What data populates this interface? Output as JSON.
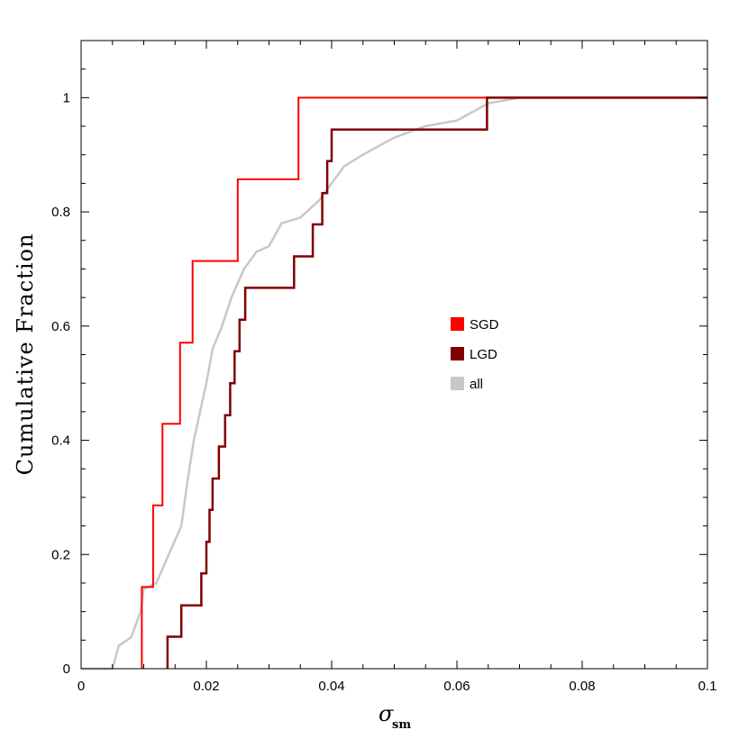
{
  "chart_data": {
    "type": "line",
    "title": "",
    "xlabel": "σ",
    "xlabel_sub": "sm",
    "ylabel": "Cumulative Fraction",
    "xlim": [
      0,
      0.1
    ],
    "ylim": [
      0,
      1.1
    ],
    "x_ticks": [
      {
        "value": 0,
        "label": "0"
      },
      {
        "value": 0.02,
        "label": "0.02"
      },
      {
        "value": 0.04,
        "label": "0.04"
      },
      {
        "value": 0.06,
        "label": "0.06"
      },
      {
        "value": 0.08,
        "label": "0.08"
      },
      {
        "value": 0.1,
        "label": "0.1"
      }
    ],
    "y_ticks": [
      {
        "value": 0,
        "label": "0"
      },
      {
        "value": 0.2,
        "label": "0.2"
      },
      {
        "value": 0.4,
        "label": "0.4"
      },
      {
        "value": 0.6,
        "label": "0.6"
      },
      {
        "value": 0.8,
        "label": "0.8"
      },
      {
        "value": 1,
        "label": "1"
      }
    ],
    "legend_position": "center-right",
    "series": [
      {
        "name": "SGD",
        "color": "#ff0000",
        "step": true,
        "points": [
          [
            0.0097,
            0
          ],
          [
            0.0097,
            0.143
          ],
          [
            0.0115,
            0.143
          ],
          [
            0.0115,
            0.286
          ],
          [
            0.013,
            0.286
          ],
          [
            0.013,
            0.429
          ],
          [
            0.0158,
            0.429
          ],
          [
            0.0158,
            0.571
          ],
          [
            0.0178,
            0.571
          ],
          [
            0.0178,
            0.714
          ],
          [
            0.025,
            0.714
          ],
          [
            0.025,
            0.857
          ],
          [
            0.0347,
            0.857
          ],
          [
            0.0347,
            1.0
          ],
          [
            0.1,
            1.0
          ]
        ]
      },
      {
        "name": "LGD",
        "color": "#800000",
        "step": true,
        "points": [
          [
            0.0138,
            0
          ],
          [
            0.0138,
            0.056
          ],
          [
            0.016,
            0.056
          ],
          [
            0.016,
            0.111
          ],
          [
            0.0192,
            0.111
          ],
          [
            0.0192,
            0.167
          ],
          [
            0.02,
            0.167
          ],
          [
            0.02,
            0.222
          ],
          [
            0.0205,
            0.222
          ],
          [
            0.0205,
            0.278
          ],
          [
            0.021,
            0.278
          ],
          [
            0.021,
            0.333
          ],
          [
            0.022,
            0.333
          ],
          [
            0.022,
            0.389
          ],
          [
            0.023,
            0.389
          ],
          [
            0.023,
            0.444
          ],
          [
            0.0238,
            0.444
          ],
          [
            0.0238,
            0.5
          ],
          [
            0.0245,
            0.5
          ],
          [
            0.0245,
            0.556
          ],
          [
            0.0253,
            0.556
          ],
          [
            0.0253,
            0.611
          ],
          [
            0.0262,
            0.611
          ],
          [
            0.0262,
            0.667
          ],
          [
            0.034,
            0.667
          ],
          [
            0.034,
            0.722
          ],
          [
            0.037,
            0.722
          ],
          [
            0.037,
            0.778
          ],
          [
            0.0385,
            0.778
          ],
          [
            0.0385,
            0.833
          ],
          [
            0.0393,
            0.833
          ],
          [
            0.0393,
            0.889
          ],
          [
            0.04,
            0.889
          ],
          [
            0.04,
            0.944
          ],
          [
            0.0648,
            0.944
          ],
          [
            0.0648,
            1.0
          ],
          [
            0.1,
            1.0
          ]
        ]
      },
      {
        "name": "all",
        "color": "#c8c8c8",
        "step": false,
        "points": [
          [
            0,
            0
          ],
          [
            0.005,
            0
          ],
          [
            0.006,
            0.04
          ],
          [
            0.008,
            0.055
          ],
          [
            0.0095,
            0.1
          ],
          [
            0.01,
            0.14
          ],
          [
            0.012,
            0.15
          ],
          [
            0.014,
            0.2
          ],
          [
            0.016,
            0.25
          ],
          [
            0.017,
            0.33
          ],
          [
            0.018,
            0.4
          ],
          [
            0.019,
            0.45
          ],
          [
            0.02,
            0.5
          ],
          [
            0.021,
            0.56
          ],
          [
            0.0225,
            0.6
          ],
          [
            0.024,
            0.65
          ],
          [
            0.026,
            0.7
          ],
          [
            0.028,
            0.73
          ],
          [
            0.03,
            0.74
          ],
          [
            0.032,
            0.78
          ],
          [
            0.035,
            0.79
          ],
          [
            0.038,
            0.82
          ],
          [
            0.04,
            0.85
          ],
          [
            0.042,
            0.88
          ],
          [
            0.045,
            0.9
          ],
          [
            0.05,
            0.93
          ],
          [
            0.055,
            0.95
          ],
          [
            0.06,
            0.96
          ],
          [
            0.065,
            0.99
          ],
          [
            0.07,
            1.0
          ],
          [
            0.1,
            1.0
          ]
        ]
      }
    ]
  }
}
